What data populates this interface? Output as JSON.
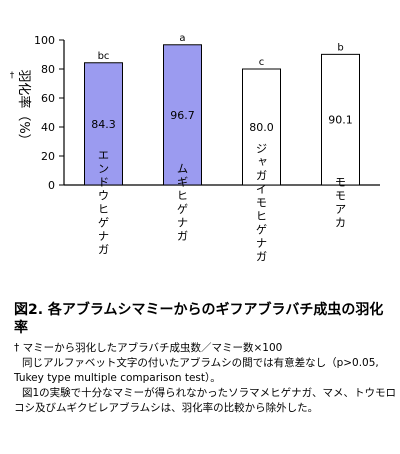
{
  "chart_data": {
    "type": "bar",
    "ylabel_marker": "†",
    "ylabel": "羽化率（%）",
    "ylim": [
      0,
      100
    ],
    "yticks": [
      0,
      20,
      40,
      60,
      80,
      100
    ],
    "categories": [
      "エンドウヒゲナガ",
      "ムギヒゲナガ",
      "ジャガイモヒゲナガ",
      "モモアカ"
    ],
    "values": [
      84.3,
      96.7,
      80.0,
      90.1
    ],
    "value_labels": [
      "84.3",
      "96.7",
      "80.0",
      "90.1"
    ],
    "significance_letters": [
      "bc",
      "a",
      "c",
      "b"
    ],
    "bar_colors": [
      "#9b9bf0",
      "#9b9bf0",
      "#ffffff",
      "#ffffff"
    ],
    "grid": false
  },
  "caption": {
    "title": "図2. 各アブラムシマミーからのギフアブラバチ成虫の羽化率",
    "notes": [
      "† マミーから羽化したアブラバチ成虫数／マミー数×100",
      "同じアルファベット文字の付いたアブラムシの間では有意差なし（p>0.05, Tukey type multiple comparison test）。",
      "図1の実験で十分なマミーが得られなかったソラマメヒゲナガ、マメ、トウモロコシ及びムギクビレアブラムシは、羽化率の比較から除外した。"
    ]
  }
}
